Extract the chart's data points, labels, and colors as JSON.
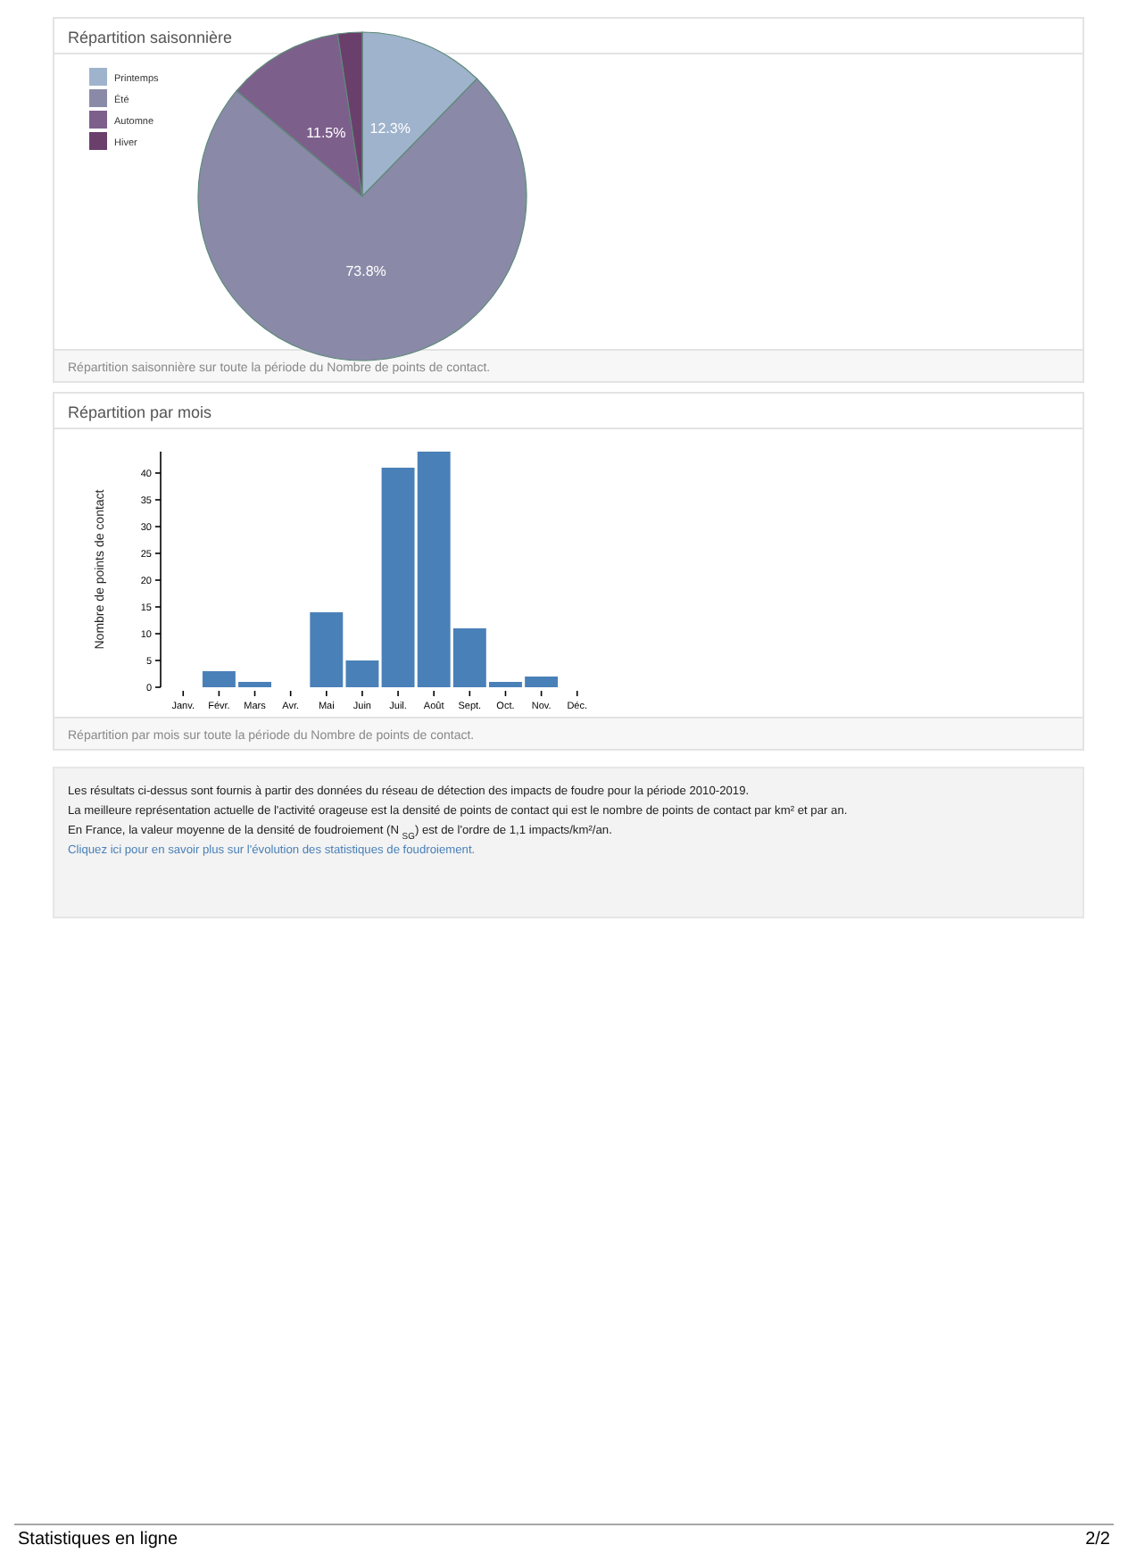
{
  "chart_data": [
    {
      "type": "pie",
      "title": "Répartition saisonnière",
      "categories": [
        "Printemps",
        "Été",
        "Automne",
        "Hiver"
      ],
      "values": [
        12.3,
        73.8,
        11.5,
        2.4
      ],
      "colors": [
        "#9fb3cc",
        "#8a8aa8",
        "#7d5f8c",
        "#6a3f6c"
      ],
      "value_labels": [
        "12.3%",
        "73.8%",
        "11.5%",
        null
      ],
      "legend": "top left",
      "annotations": [
        "Répartition saisonnière sur toute la période du Nombre de points de contact."
      ]
    },
    {
      "type": "bar",
      "title": "Répartition par mois",
      "ylabel": "Nombre de points de contact",
      "categories": [
        "Janv.",
        "Févr.",
        "Mars",
        "Avr.",
        "Mai",
        "Juin",
        "Juil.",
        "Août",
        "Sept.",
        "Oct.",
        "Nov.",
        "Déc."
      ],
      "values": [
        0,
        3,
        1,
        0,
        14,
        5,
        41,
        44,
        11,
        1,
        2,
        0
      ],
      "color": "#4a80b8",
      "ylim": [
        0,
        44
      ],
      "yticks": [
        0,
        5,
        10,
        15,
        20,
        25,
        30,
        35,
        40
      ],
      "annotations": [
        "Répartition par mois sur toute la période du Nombre de points de contact."
      ]
    },
    {
      "type": "other",
      "annotations": [
        "Les résultats ci-dessus sont fournis à partir des données du réseau de détection des impacts de foudre pour la période 2010-2019.",
        "La meilleure représentation actuelle de l'activité orageuse est la densité de points de contact qui est le nombre de points de contact par km² et par an.",
        "En France, la valeur moyenne de la densité de foudroiement (N $_{SG}$) est de l'ordre de 1,1 impacts/km²/an.",
        "Cliquez ici pour en savoir plus sur l'évolution des statistiques de foudroiement.",
        "Statistiques en ligne",
        "2/2"
      ]
    }
  ]
}
